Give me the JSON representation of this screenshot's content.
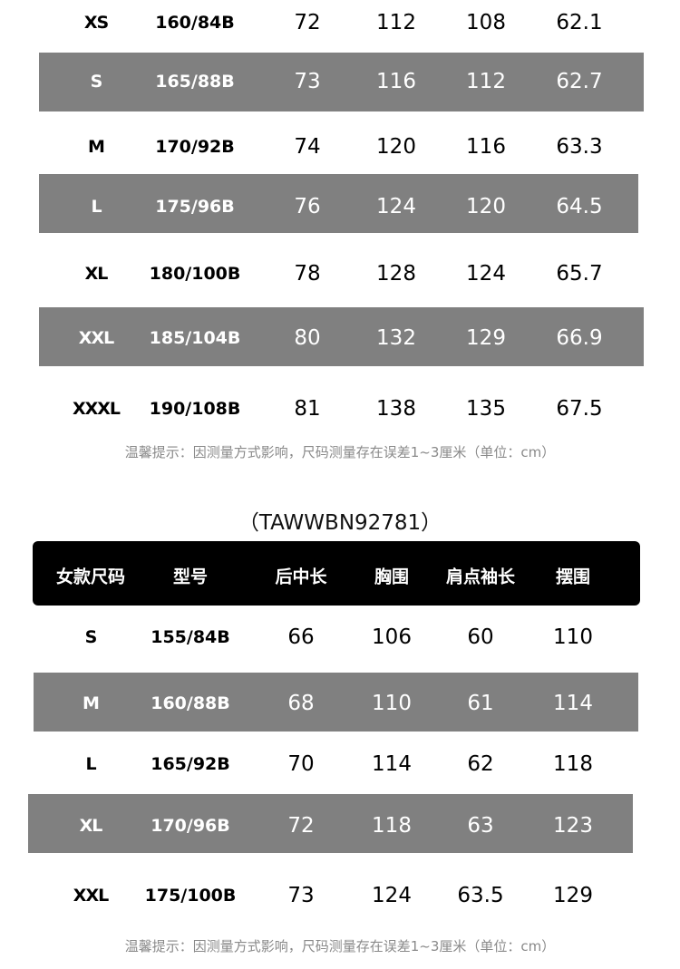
{
  "colors": {
    "stripe": "#808080",
    "header_bg": "#000000",
    "note": "#8a8a8a"
  },
  "table1": {
    "rows": [
      [
        "XS",
        "160/84B",
        "72",
        "112",
        "108",
        "62.1"
      ],
      [
        "S",
        "165/88B",
        "73",
        "116",
        "112",
        "62.7"
      ],
      [
        "M",
        "170/92B",
        "74",
        "120",
        "116",
        "63.3"
      ],
      [
        "L",
        "175/96B",
        "76",
        "124",
        "120",
        "64.5"
      ],
      [
        "XL",
        "180/100B",
        "78",
        "128",
        "124",
        "65.7"
      ],
      [
        "XXL",
        "185/104B",
        "80",
        "132",
        "129",
        "66.9"
      ],
      [
        "XXXL",
        "190/108B",
        "81",
        "138",
        "135",
        "67.5"
      ]
    ],
    "note": "温馨提示：因测量方式影响，尺码测量存在误差1~3厘米（单位：cm）"
  },
  "table2": {
    "title": "（TAWWBN92781）",
    "headers": [
      "女款尺码",
      "型号",
      "后中长",
      "胸围",
      "肩点袖长",
      "摆围"
    ],
    "rows": [
      [
        "S",
        "155/84B",
        "66",
        "106",
        "60",
        "110"
      ],
      [
        "M",
        "160/88B",
        "68",
        "110",
        "61",
        "114"
      ],
      [
        "L",
        "165/92B",
        "70",
        "114",
        "62",
        "118"
      ],
      [
        "XL",
        "170/96B",
        "72",
        "118",
        "63",
        "123"
      ],
      [
        "XXL",
        "175/100B",
        "73",
        "124",
        "63.5",
        "129"
      ]
    ],
    "note": "温馨提示：因测量方式影响，尺码测量存在误差1~3厘米（单位：cm）"
  }
}
